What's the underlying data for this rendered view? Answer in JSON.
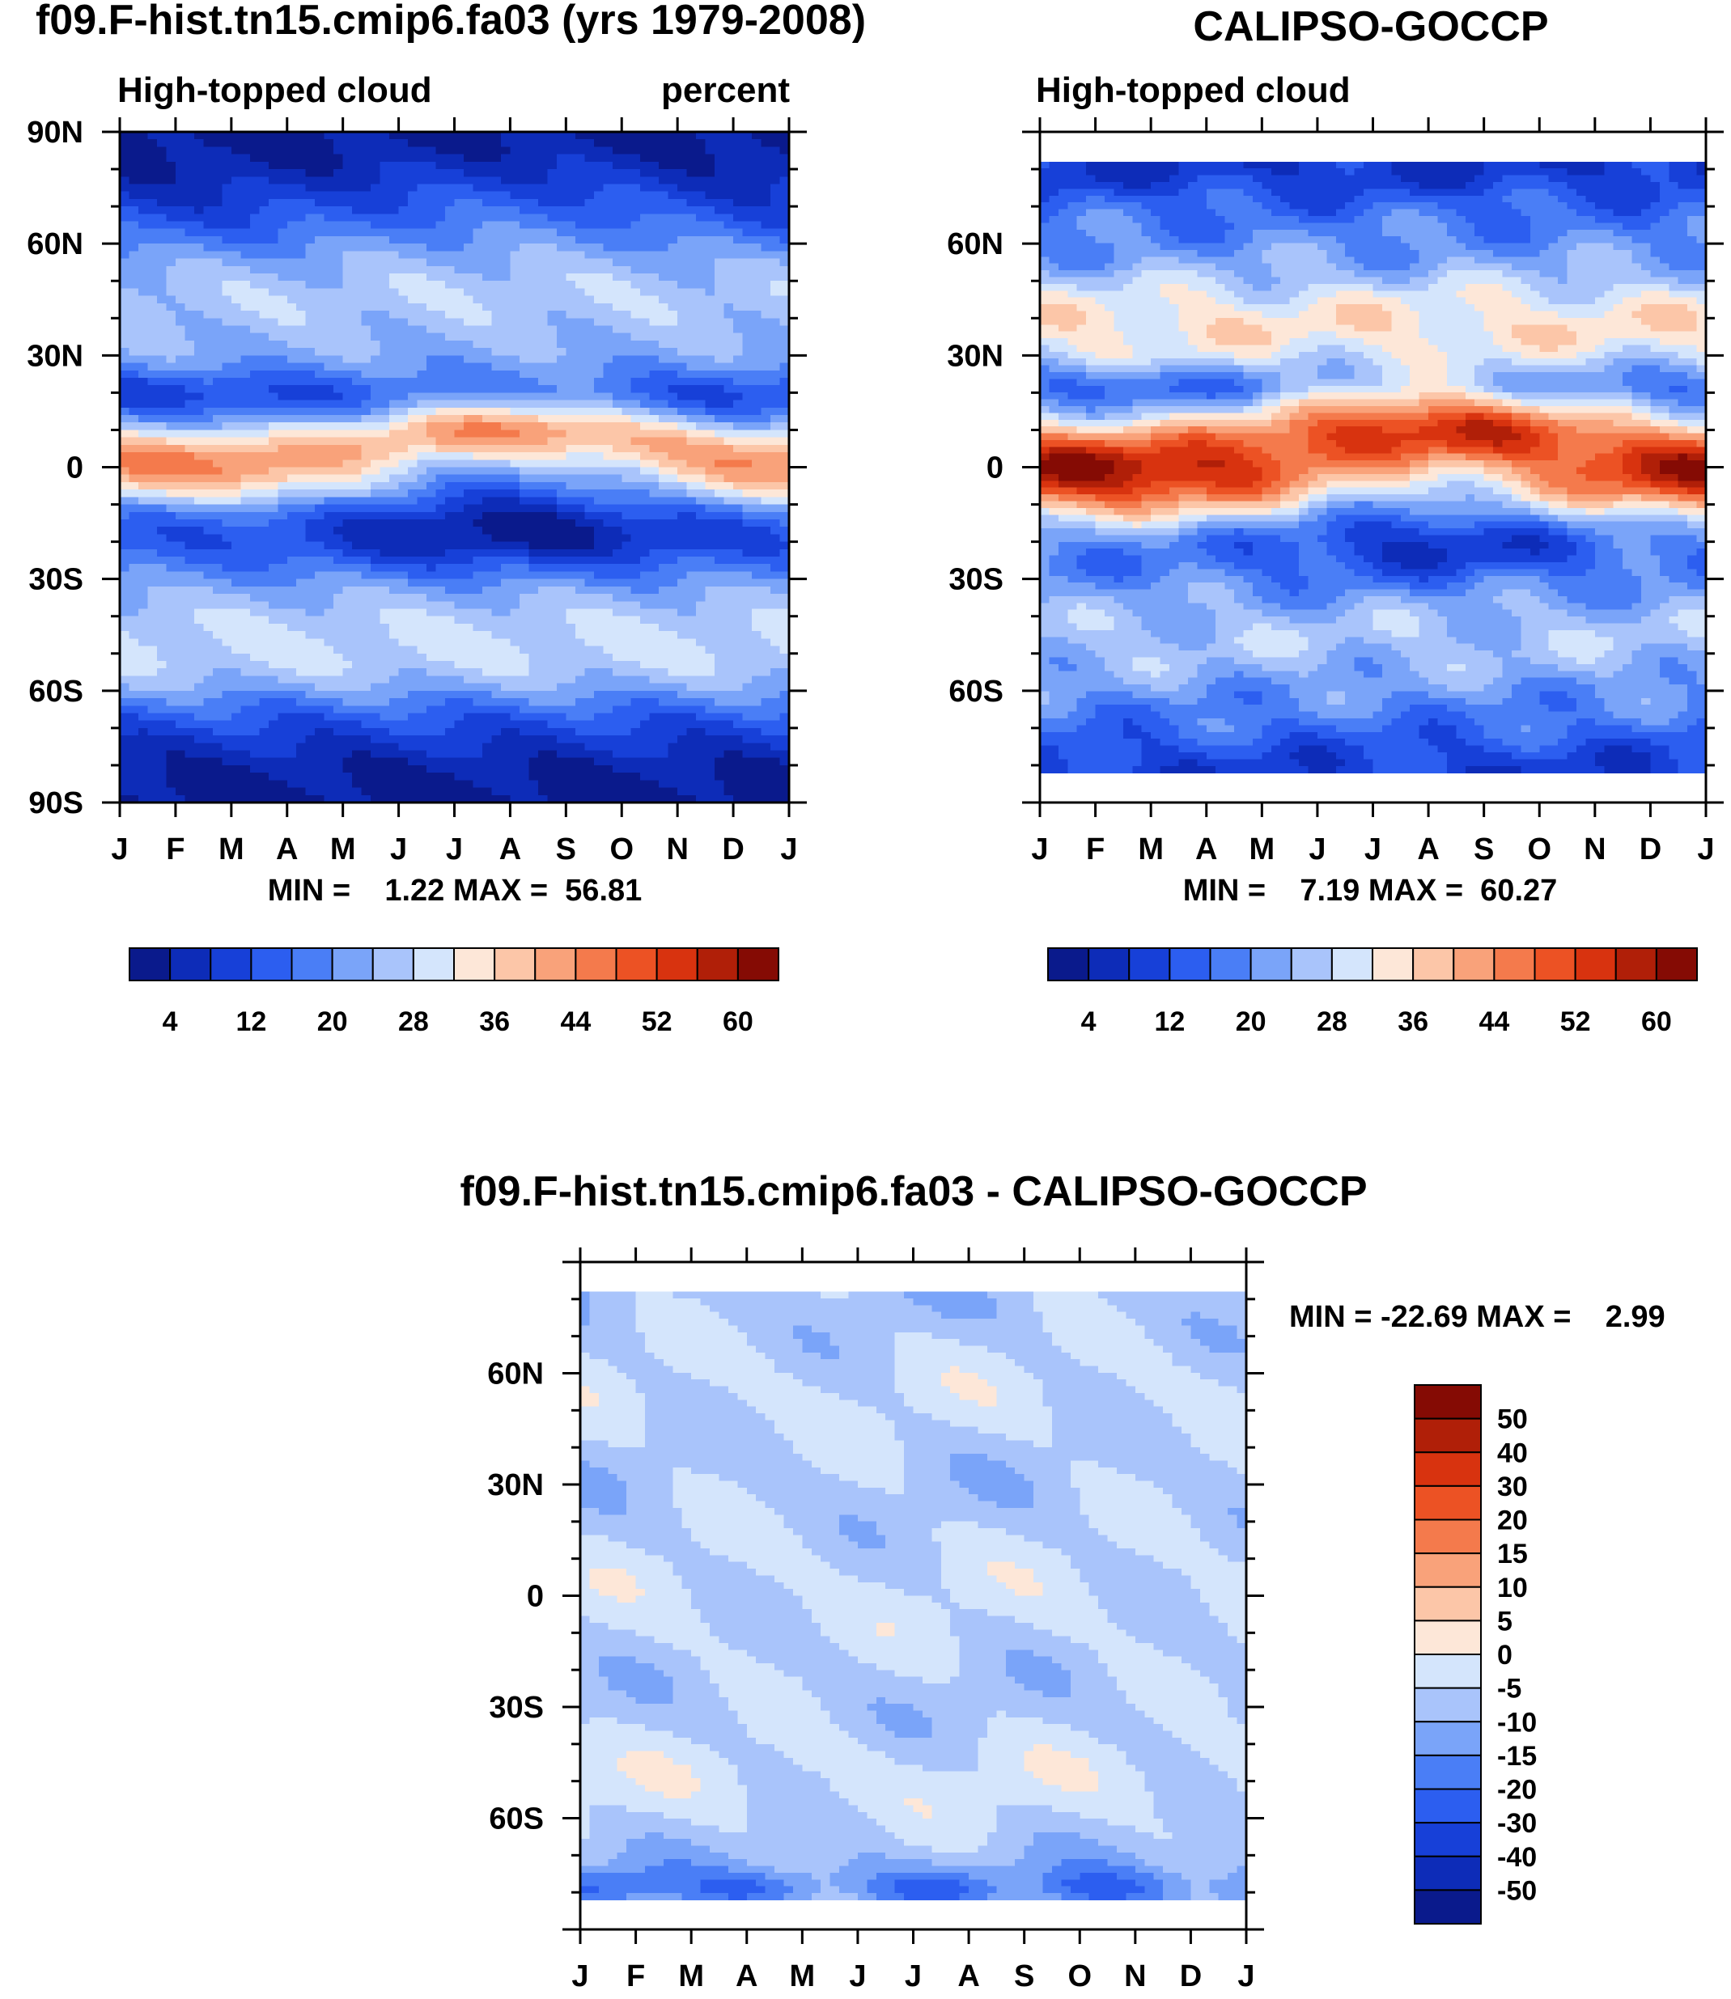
{
  "figure": {
    "model_title": "f09.F-hist.tn15.cmip6.fa03 (yrs 1979-2008)",
    "obs_title": "CALIPSO-GOCCP",
    "diff_title": "f09.F-hist.tn15.cmip6.fa03 - CALIPSO-GOCCP"
  },
  "chart_data": [
    {
      "type": "heatmap",
      "title": "f09.F-hist.tn15.cmip6.fa03 (yrs 1979-2008)",
      "left_label": "High-topped cloud",
      "right_label": "percent",
      "x_ticks": [
        "J",
        "F",
        "M",
        "A",
        "M",
        "J",
        "J",
        "A",
        "S",
        "O",
        "N",
        "D",
        "J"
      ],
      "y_ticks": [
        "90N",
        "60N",
        "30N",
        "0",
        "30S",
        "60S",
        "90S"
      ],
      "y_range": [
        -90,
        90
      ],
      "stats": "MIN =    1.22 MAX =  56.81",
      "min": 1.22,
      "max": 56.81,
      "colorbar_labels": [
        "4",
        "12",
        "20",
        "28",
        "36",
        "44",
        "52",
        "60"
      ],
      "levels": [
        4,
        8,
        12,
        16,
        20,
        24,
        28,
        32,
        36,
        40,
        44,
        48,
        52,
        56,
        60
      ]
    },
    {
      "type": "heatmap",
      "title": "CALIPSO-GOCCP",
      "left_label": "High-topped cloud",
      "x_ticks": [
        "J",
        "F",
        "M",
        "A",
        "M",
        "J",
        "J",
        "A",
        "S",
        "O",
        "N",
        "D",
        "J"
      ],
      "y_ticks": [
        "60N",
        "30N",
        "0",
        "30S",
        "60S"
      ],
      "y_range": [
        -90,
        90
      ],
      "data_lat_range": [
        -82,
        82
      ],
      "stats": "MIN =    7.19 MAX =  60.27",
      "min": 7.19,
      "max": 60.27,
      "colorbar_labels": [
        "4",
        "12",
        "20",
        "28",
        "36",
        "44",
        "52",
        "60"
      ],
      "levels": [
        4,
        8,
        12,
        16,
        20,
        24,
        28,
        32,
        36,
        40,
        44,
        48,
        52,
        56,
        60
      ]
    },
    {
      "type": "heatmap",
      "title": "f09.F-hist.tn15.cmip6.fa03 - CALIPSO-GOCCP",
      "x_ticks": [
        "J",
        "F",
        "M",
        "A",
        "M",
        "J",
        "J",
        "A",
        "S",
        "O",
        "N",
        "D",
        "J"
      ],
      "y_ticks": [
        "60N",
        "30N",
        "0",
        "30S",
        "60S"
      ],
      "y_range": [
        -90,
        90
      ],
      "data_lat_range": [
        -82,
        82
      ],
      "stats": "MIN = -22.69 MAX =    2.99",
      "min": -22.69,
      "max": 2.99,
      "colorbar_labels": [
        "50",
        "40",
        "30",
        "20",
        "15",
        "10",
        "5",
        "0",
        "-5",
        "-10",
        "-15",
        "-20",
        "-30",
        "-40",
        "-50"
      ]
    }
  ],
  "colors": {
    "seq": [
      "#0a1a8c",
      "#0d2cb8",
      "#1740d8",
      "#2c5ef0",
      "#4a7ef6",
      "#7aa4f9",
      "#a9c4fb",
      "#d4e5fc",
      "#fde7d8",
      "#fcc6a8",
      "#f9a27a",
      "#f47a4c",
      "#ec5224",
      "#d8330f",
      "#b01f08",
      "#850b04"
    ],
    "diff": [
      "#850b04",
      "#b01f08",
      "#d8330f",
      "#ec5224",
      "#f47a4c",
      "#f9a27a",
      "#fcc6a8",
      "#fde7d8",
      "#d4e5fc",
      "#a9c4fb",
      "#7aa4f9",
      "#4a7ef6",
      "#2c5ef0",
      "#1740d8",
      "#0d2cb8",
      "#0a1a8c"
    ]
  }
}
